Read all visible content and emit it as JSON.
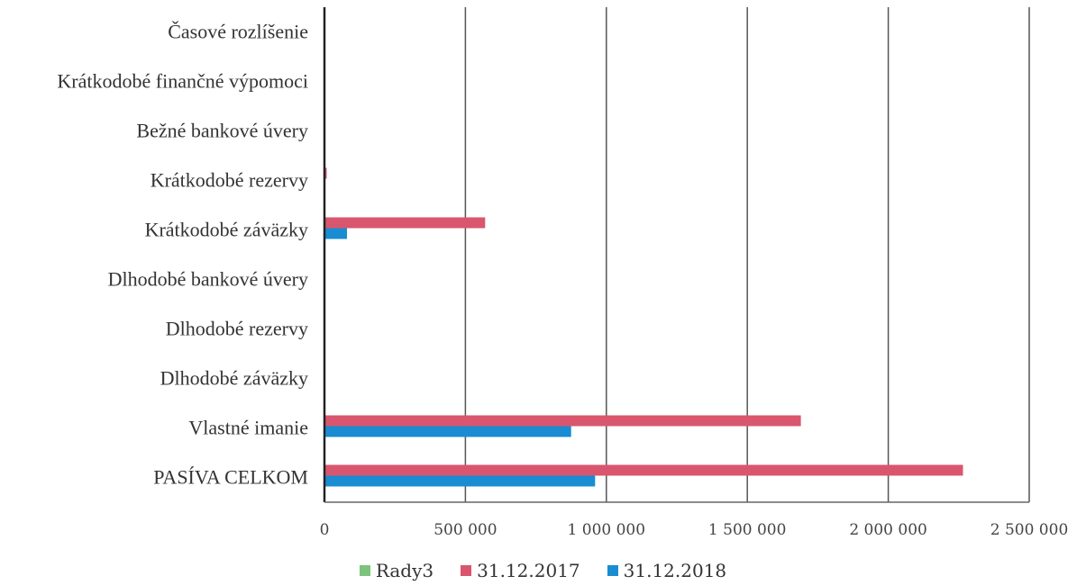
{
  "chart_data": {
    "type": "bar",
    "orientation": "horizontal",
    "title": "",
    "xlabel": "",
    "ylabel": "",
    "categories": [
      "Časové rozlíšenie",
      "Krátkodobé finančné výpomoci",
      "Bežné bankové úvery",
      "Krátkodobé rezervy",
      "Krátkodobé záväzky",
      "Dlhodobé bankové úvery",
      "Dlhodobé rezervy",
      "Dlhodobé záväzky",
      "Vlastné imanie",
      "PASÍVA CELKOM"
    ],
    "series": [
      {
        "name": "Rady3",
        "color": "#7cc47c",
        "values": [
          0,
          0,
          0,
          0,
          0,
          0,
          0,
          0,
          0,
          0
        ]
      },
      {
        "name": "31.12.2017",
        "color": "#d9566e",
        "values": [
          0,
          0,
          0,
          8000,
          570000,
          0,
          0,
          0,
          1690000,
          2265000
        ]
      },
      {
        "name": "31.12.2018",
        "color": "#1a8cd2",
        "values": [
          0,
          0,
          0,
          0,
          80000,
          0,
          0,
          0,
          875000,
          960000
        ]
      }
    ],
    "xlim": [
      0,
      2500000
    ],
    "xticks": [
      0,
      500000,
      1000000,
      1500000,
      2000000,
      2500000
    ],
    "xtick_labels": [
      "0",
      "500 000",
      "1 000 000",
      "1 500 000",
      "2 000 000",
      "2 500 000"
    ],
    "grid": true,
    "legend_position": "bottom"
  }
}
